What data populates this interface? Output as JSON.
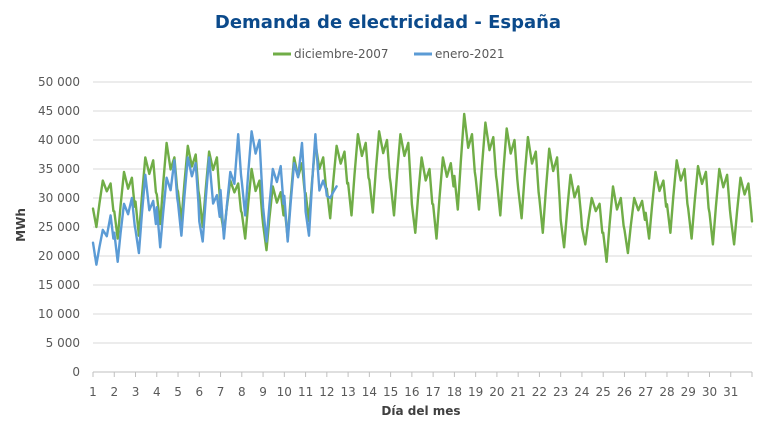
{
  "chart_data": {
    "type": "line",
    "title": "Demanda de electricidad - España",
    "xlabel": "Día del mes",
    "ylabel": "MWh",
    "ylim": [
      0,
      50000
    ],
    "y_ticks": [
      "0",
      "5 000",
      "10 000",
      "15 000",
      "20 000",
      "25 000",
      "30 000",
      "35 000",
      "40 000",
      "45 000",
      "50 000"
    ],
    "x_ticks": [
      "1",
      "2",
      "3",
      "4",
      "5",
      "6",
      "7",
      "8",
      "9",
      "10",
      "11",
      "12",
      "13",
      "14",
      "15",
      "16",
      "17",
      "18",
      "19",
      "20",
      "21",
      "22",
      "23",
      "24",
      "25",
      "26",
      "27",
      "28",
      "29",
      "30",
      "31"
    ],
    "grid": true,
    "legend": "top",
    "series": [
      {
        "name": "diciembre-2007",
        "color": "#70ad47",
        "daily": [
          {
            "day": 1,
            "min": 25000,
            "peaks": [
              33000,
              32500
            ]
          },
          {
            "day": 2,
            "min": 23000,
            "peaks": [
              34500,
              33500
            ]
          },
          {
            "day": 3,
            "min": 23500,
            "peaks": [
              37000,
              36500
            ]
          },
          {
            "day": 4,
            "min": 25500,
            "peaks": [
              39500,
              37000
            ]
          },
          {
            "day": 5,
            "min": 26000,
            "peaks": [
              39000,
              37500
            ]
          },
          {
            "day": 6,
            "min": 25000,
            "peaks": [
              38000,
              37000
            ]
          },
          {
            "day": 7,
            "min": 24000,
            "peaks": [
              33000,
              32500
            ]
          },
          {
            "day": 8,
            "min": 23000,
            "peaks": [
              35000,
              33000
            ]
          },
          {
            "day": 9,
            "min": 21000,
            "peaks": [
              32000,
              31000
            ]
          },
          {
            "day": 10,
            "min": 23000,
            "peaks": [
              37000,
              36000
            ]
          },
          {
            "day": 11,
            "min": 26000,
            "peaks": [
              39500,
              37000
            ]
          },
          {
            "day": 12,
            "min": 26500,
            "peaks": [
              39000,
              38000
            ]
          },
          {
            "day": 13,
            "min": 27000,
            "peaks": [
              41000,
              39500
            ]
          },
          {
            "day": 14,
            "min": 27500,
            "peaks": [
              41500,
              40000
            ]
          },
          {
            "day": 15,
            "min": 27000,
            "peaks": [
              41000,
              39500
            ]
          },
          {
            "day": 16,
            "min": 24000,
            "peaks": [
              37000,
              35000
            ]
          },
          {
            "day": 17,
            "min": 23000,
            "peaks": [
              37000,
              36000
            ]
          },
          {
            "day": 18,
            "min": 28000,
            "peaks": [
              44500,
              41000
            ]
          },
          {
            "day": 19,
            "min": 28000,
            "peaks": [
              43000,
              40500
            ]
          },
          {
            "day": 20,
            "min": 27000,
            "peaks": [
              42000,
              40000
            ]
          },
          {
            "day": 21,
            "min": 26500,
            "peaks": [
              40500,
              38000
            ]
          },
          {
            "day": 22,
            "min": 24000,
            "peaks": [
              38500,
              37000
            ]
          },
          {
            "day": 23,
            "min": 21500,
            "peaks": [
              34000,
              32000
            ]
          },
          {
            "day": 24,
            "min": 22000,
            "peaks": [
              30000,
              29000
            ]
          },
          {
            "day": 25,
            "min": 19000,
            "peaks": [
              32000,
              30000
            ]
          },
          {
            "day": 26,
            "min": 20500,
            "peaks": [
              30000,
              29500
            ]
          },
          {
            "day": 27,
            "min": 23000,
            "peaks": [
              34500,
              33000
            ]
          },
          {
            "day": 28,
            "min": 24000,
            "peaks": [
              36500,
              35000
            ]
          },
          {
            "day": 29,
            "min": 23000,
            "peaks": [
              35500,
              34500
            ]
          },
          {
            "day": 30,
            "min": 22000,
            "peaks": [
              35000,
              34000
            ]
          },
          {
            "day": 31,
            "min": 22000,
            "peaks": [
              33500,
              32500
            ]
          },
          {
            "day": 32,
            "min": 23000,
            "peaks": [
              34000,
              30000
            ]
          }
        ]
      },
      {
        "name": "enero-2021",
        "color": "#5b9bd5",
        "daily": [
          {
            "day": 1,
            "min": 18500,
            "peaks": [
              24500,
              27000
            ]
          },
          {
            "day": 2,
            "min": 19000,
            "peaks": [
              29000,
              30000
            ]
          },
          {
            "day": 3,
            "min": 20500,
            "peaks": [
              34000,
              29500
            ]
          },
          {
            "day": 4,
            "min": 21500,
            "peaks": [
              33500,
              36500
            ]
          },
          {
            "day": 5,
            "min": 23500,
            "peaks": [
              37000,
              36000
            ]
          },
          {
            "day": 6,
            "min": 22500,
            "peaks": [
              37000,
              30500
            ]
          },
          {
            "day": 7,
            "min": 23000,
            "peaks": [
              34500,
              41000
            ]
          },
          {
            "day": 8,
            "min": 27000,
            "peaks": [
              41500,
              40000
            ]
          },
          {
            "day": 9,
            "min": 22500,
            "peaks": [
              35000,
              35500
            ]
          },
          {
            "day": 10,
            "min": 22500,
            "peaks": [
              36000,
              39500
            ]
          },
          {
            "day": 11,
            "min": 23500,
            "peaks": [
              41000,
              33000
            ]
          },
          {
            "day": 12,
            "min": 30000,
            "peaks": [
              32000
            ]
          }
        ]
      }
    ]
  }
}
